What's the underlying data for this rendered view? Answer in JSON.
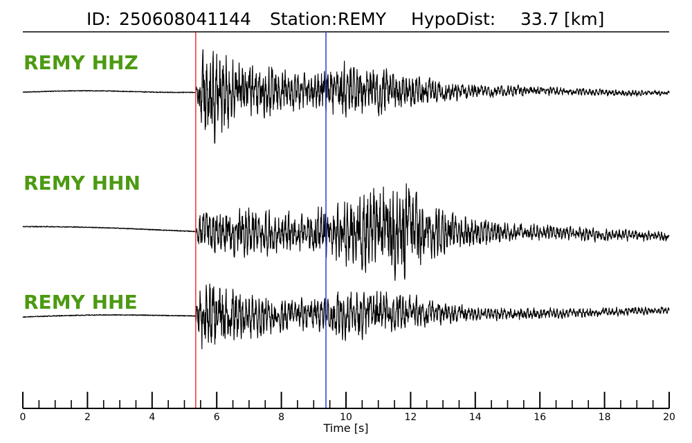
{
  "chart_data": {
    "type": "line",
    "title": {
      "id_label": "ID:",
      "id_value": "250608041144",
      "station_label": "Station:",
      "station_value": "REMY",
      "dist_label": "HypoDist:",
      "dist_value": "33.7",
      "dist_unit": "[km]"
    },
    "xlabel": "Time [s]",
    "xlim": [
      0,
      20
    ],
    "x_major_ticks": [
      0,
      2,
      4,
      6,
      8,
      10,
      12,
      14,
      16,
      18,
      20
    ],
    "x_minor_step": 0.5,
    "grid": false,
    "legend": "none",
    "label_color": "#4c9a12",
    "picks": [
      {
        "phase": "P",
        "time": 5.35,
        "color": "#e8342a"
      },
      {
        "phase": "S",
        "time": 9.38,
        "color": "#2b3bdc"
      }
    ],
    "series": [
      {
        "name": "REMY HHZ",
        "envelope": [
          [
            0,
            0.03
          ],
          [
            5.3,
            0.03
          ],
          [
            5.4,
            0.2
          ],
          [
            5.6,
            1.0
          ],
          [
            6.0,
            0.95
          ],
          [
            7.0,
            0.55
          ],
          [
            8.0,
            0.45
          ],
          [
            9.0,
            0.35
          ],
          [
            10.0,
            0.55
          ],
          [
            11.0,
            0.45
          ],
          [
            12.0,
            0.32
          ],
          [
            13.0,
            0.22
          ],
          [
            14.0,
            0.14
          ],
          [
            16.0,
            0.09
          ],
          [
            18.0,
            0.07
          ],
          [
            20.0,
            0.05
          ]
        ]
      },
      {
        "name": "REMY HHN",
        "envelope": [
          [
            0,
            0.02
          ],
          [
            5.3,
            0.02
          ],
          [
            5.5,
            0.35
          ],
          [
            6.5,
            0.5
          ],
          [
            7.5,
            0.45
          ],
          [
            8.5,
            0.35
          ],
          [
            9.5,
            0.55
          ],
          [
            10.5,
            0.8
          ],
          [
            11.5,
            0.9
          ],
          [
            12.0,
            1.0
          ],
          [
            12.5,
            0.6
          ],
          [
            13.5,
            0.35
          ],
          [
            15.0,
            0.2
          ],
          [
            17.0,
            0.14
          ],
          [
            20.0,
            0.1
          ]
        ]
      },
      {
        "name": "REMY HHE",
        "envelope": [
          [
            0,
            0.03
          ],
          [
            5.3,
            0.03
          ],
          [
            5.5,
            0.9
          ],
          [
            6.0,
            1.0
          ],
          [
            7.0,
            0.6
          ],
          [
            8.0,
            0.45
          ],
          [
            9.0,
            0.4
          ],
          [
            10.0,
            0.65
          ],
          [
            11.0,
            0.55
          ],
          [
            12.0,
            0.45
          ],
          [
            13.0,
            0.28
          ],
          [
            14.0,
            0.18
          ],
          [
            16.0,
            0.14
          ],
          [
            18.0,
            0.12
          ],
          [
            20.0,
            0.09
          ]
        ]
      }
    ]
  }
}
